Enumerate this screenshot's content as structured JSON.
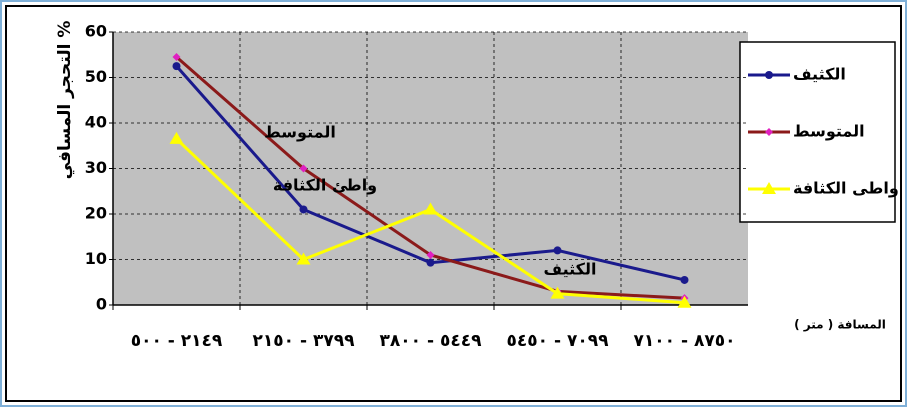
{
  "chart_data": {
    "type": "line",
    "y_label": "التحجر المسافي %",
    "x_label": "المسافة ( متر )",
    "categories": [
      "٢١٤٩ - ٥٠٠",
      "٣٧٩٩ - ٢١٥٠",
      "٥٤٤٩ - ٣٨٠٠",
      "٧٠٩٩ - ٥٤٥٠",
      "٨٧٥٠ - ٧١٠٠"
    ],
    "series": [
      {
        "name": "الكثيف",
        "color": "#1a1a8c",
        "marker_color": "#1a1a8c",
        "marker": "circle",
        "values": [
          52.5,
          21,
          9.3,
          12,
          5.5
        ]
      },
      {
        "name": "المتوسط",
        "color": "#8b1a1a",
        "marker_color": "#e020c0",
        "marker": "diamond",
        "values": [
          54.5,
          30,
          11,
          3,
          1.5
        ]
      },
      {
        "name": "واطى الكثافة",
        "color": "#ffff00",
        "marker_color": "#ffff00",
        "marker": "triangle",
        "values": [
          36.5,
          10,
          21,
          2.5,
          0.5
        ]
      }
    ],
    "annotations": [
      "المتوسط",
      "واطئ الكثافة",
      "الكثيف"
    ],
    "ylim": [
      0,
      60
    ],
    "yticks": [
      0,
      10,
      20,
      30,
      40,
      50,
      60
    ],
    "grid": true
  }
}
